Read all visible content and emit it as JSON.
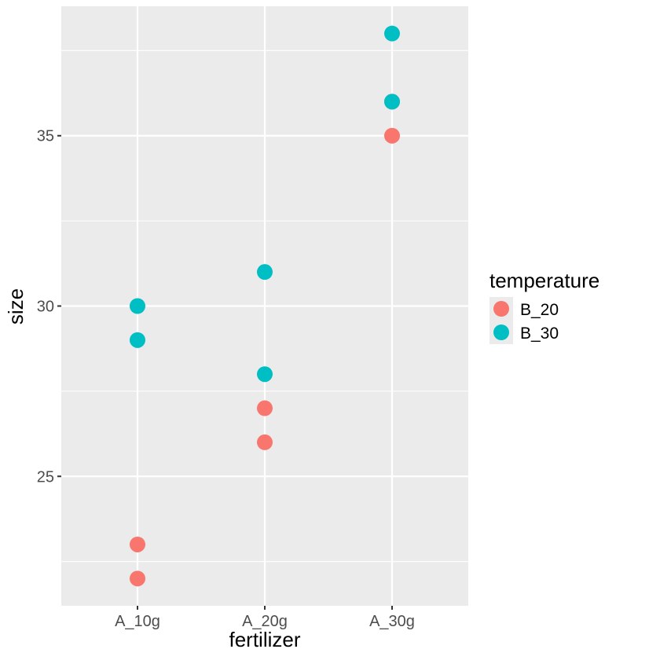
{
  "chart_data": {
    "type": "scatter",
    "xlabel": "fertilizer",
    "ylabel": "size",
    "categories": [
      "A_10g",
      "A_20g",
      "A_30g"
    ],
    "ylim": [
      21.2,
      38.8
    ],
    "yticks": [
      25,
      30,
      35
    ],
    "yminor": [
      22.5,
      27.5,
      32.5,
      37.5
    ],
    "grid": true,
    "legend": {
      "title": "temperature",
      "placement": "right",
      "entries": [
        "B_20",
        "B_30"
      ]
    },
    "series": [
      {
        "name": "B_20",
        "color": "#F8766D",
        "points": [
          {
            "x": "A_10g",
            "y": 23
          },
          {
            "x": "A_10g",
            "y": 22
          },
          {
            "x": "A_20g",
            "y": 27
          },
          {
            "x": "A_20g",
            "y": 26
          },
          {
            "x": "A_30g",
            "y": 36
          },
          {
            "x": "A_30g",
            "y": 35
          }
        ]
      },
      {
        "name": "B_30",
        "color": "#00BFC4",
        "points": [
          {
            "x": "A_10g",
            "y": 30
          },
          {
            "x": "A_10g",
            "y": 29
          },
          {
            "x": "A_20g",
            "y": 31
          },
          {
            "x": "A_20g",
            "y": 28
          },
          {
            "x": "A_30g",
            "y": 38
          },
          {
            "x": "A_30g",
            "y": 36
          }
        ]
      }
    ]
  }
}
